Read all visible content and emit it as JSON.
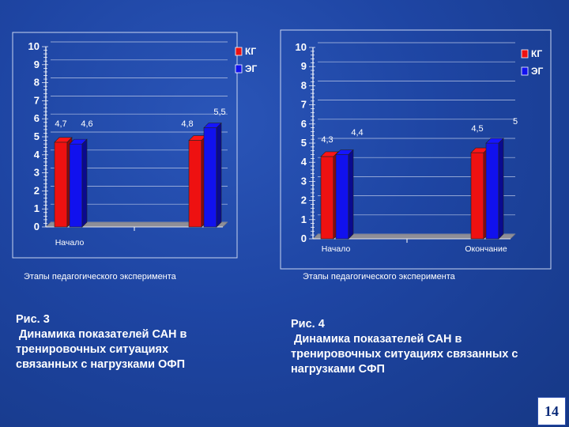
{
  "chart_data": [
    {
      "type": "bar",
      "categories": [
        "Начало",
        ""
      ],
      "series": [
        {
          "name": "КГ",
          "color": "#ee1111",
          "values": [
            4.7,
            4.8
          ]
        },
        {
          "name": "ЭГ",
          "color": "#1111ee",
          "values": [
            4.6,
            5.5
          ]
        }
      ],
      "value_labels": [
        "4,7",
        "4,6",
        "4,8",
        "5,5"
      ],
      "ylim": [
        0,
        10
      ],
      "y_ticks": [
        "0",
        "1",
        "2",
        "3",
        "4",
        "5",
        "6",
        "7",
        "8",
        "9",
        "10"
      ],
      "legend_position": "top-right",
      "xlabel": "Этапы педагогического эксперимента"
    },
    {
      "type": "bar",
      "categories": [
        "Начало",
        "Окончание"
      ],
      "series": [
        {
          "name": "КГ",
          "color": "#ee1111",
          "values": [
            4.3,
            4.5
          ]
        },
        {
          "name": "ЭГ",
          "color": "#1111ee",
          "values": [
            4.4,
            5.0
          ]
        }
      ],
      "value_labels": [
        "4,3",
        "4,4",
        "4,5",
        "5"
      ],
      "ylim": [
        0,
        10
      ],
      "y_ticks": [
        "0",
        "1",
        "2",
        "3",
        "4",
        "5",
        "6",
        "7",
        "8",
        "9",
        "10"
      ],
      "legend_position": "top-right",
      "xlabel": "Этапы педагогического эксперимента"
    }
  ],
  "captions": {
    "left": [
      "Рис. 3",
      " Динамика показателей САН в",
      "тренировочных ситуациях",
      "связанных с нагрузками ОФП"
    ],
    "right": [
      "Рис. 4",
      " Динамика показателей САН в",
      "тренировочных ситуациях связанных с",
      "нагрузками СФП"
    ]
  },
  "page_number": "14"
}
